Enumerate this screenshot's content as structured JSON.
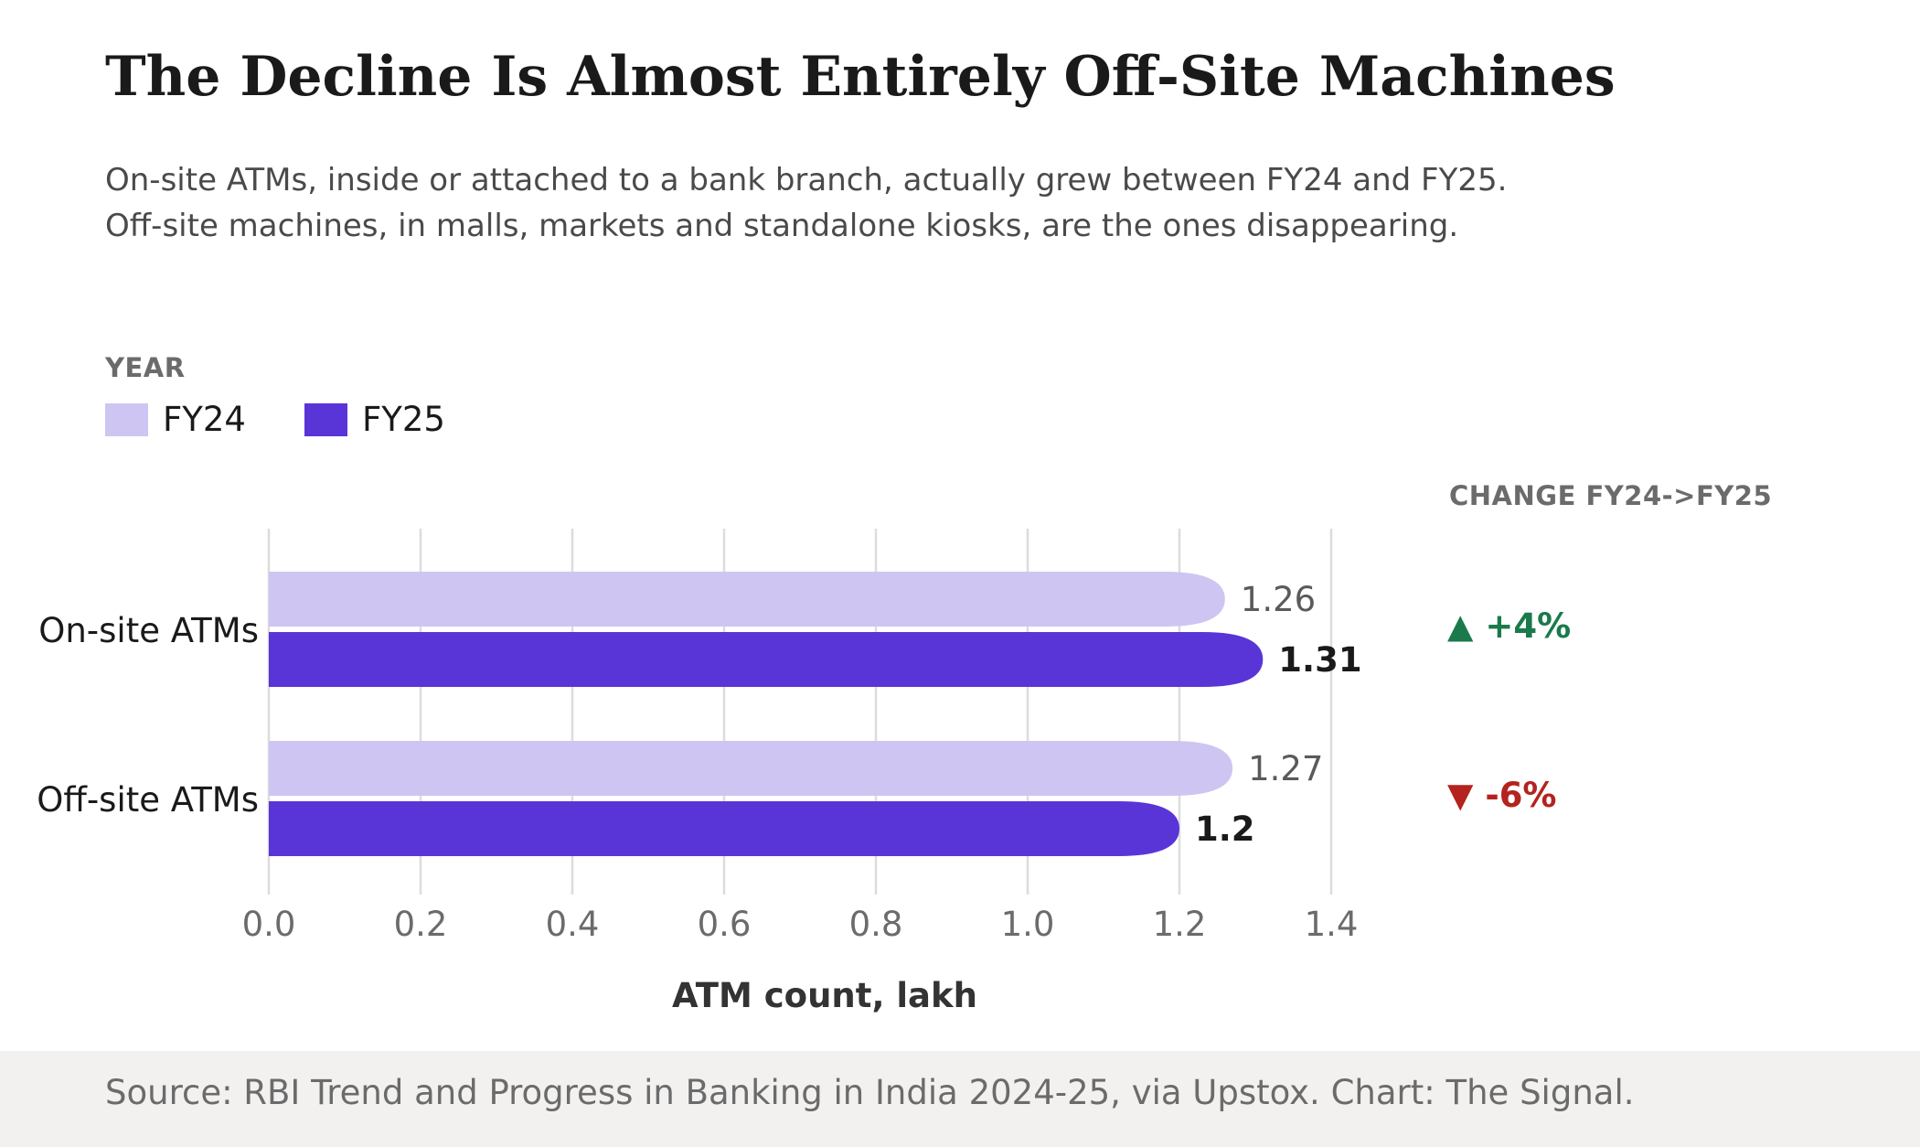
{
  "chart_data": {
    "type": "bar",
    "orientation": "horizontal",
    "title": "The Decline Is Almost Entirely Off-Site Machines",
    "subtitle": "On-site ATMs, inside or attached to a bank branch, actually grew between FY24 and FY25. Off-site machines, in malls, markets and standalone kiosks, are the ones disappearing.",
    "categories": [
      "On-site ATMs",
      "Off-site ATMs"
    ],
    "series": [
      {
        "name": "FY24",
        "values": [
          1.26,
          1.27
        ],
        "labels": [
          "1.26",
          "1.27"
        ],
        "color": "#cfc5f2"
      },
      {
        "name": "FY25",
        "values": [
          1.31,
          1.2
        ],
        "labels": [
          "1.31",
          "1.2"
        ],
        "color": "#5935d8"
      }
    ],
    "xlabel": "ATM count, lakh",
    "ylabel": "",
    "xlim": [
      0,
      1.4
    ],
    "xticks": [
      "0.0",
      "0.2",
      "0.4",
      "0.6",
      "0.8",
      "1.0",
      "1.2",
      "1.4"
    ],
    "grid": true,
    "legend": {
      "title": "YEAR",
      "placement": "top-left"
    },
    "change": {
      "title": "CHANGE FY24->FY25",
      "items": [
        {
          "text": "▲ +4%",
          "color": "#1a7a4c"
        },
        {
          "text": "▼ -6%",
          "color": "#b3241e"
        }
      ]
    }
  },
  "source": "Source: RBI Trend and Progress in Banking in India 2024-25, via Upstox. Chart: The Signal."
}
